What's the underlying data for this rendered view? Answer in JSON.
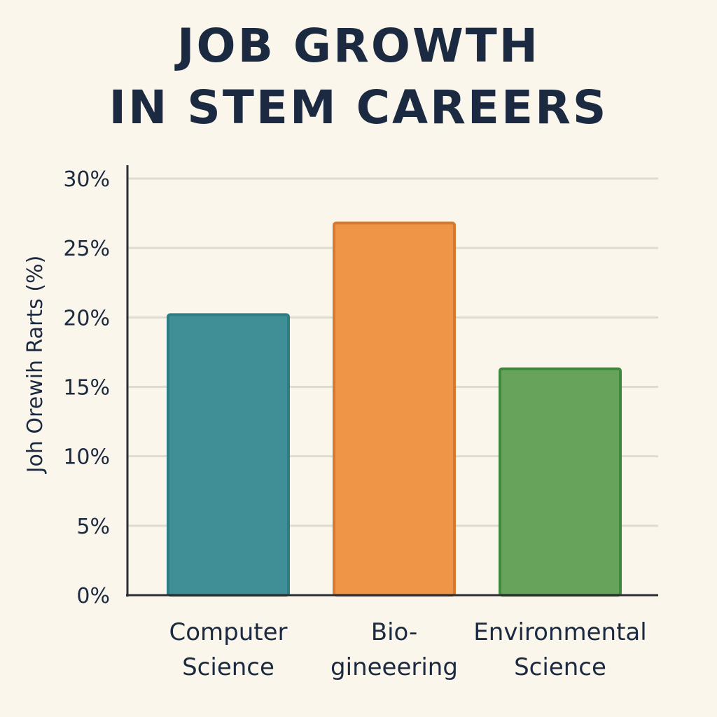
{
  "chart_data": {
    "type": "bar",
    "title_lines": [
      "JOB GROWTH",
      "IN STEM CAREERS"
    ],
    "ylabel": "Joh Orewih Rarts (%)",
    "xlabel": "",
    "ylim": [
      0,
      30
    ],
    "yticks": [
      {
        "value": 0,
        "label": "0%"
      },
      {
        "value": 5,
        "label": "5%"
      },
      {
        "value": 10,
        "label": "10%"
      },
      {
        "value": 15,
        "label": "15%"
      },
      {
        "value": 20,
        "label": "20%"
      },
      {
        "value": 25,
        "label": "25%"
      },
      {
        "value": 30,
        "label": "30%"
      }
    ],
    "categories": [
      {
        "lines": [
          "Computer",
          "Science"
        ],
        "value": 20.2,
        "color": "#3e8f96",
        "stroke": "#2e7c84"
      },
      {
        "lines": [
          "Bio-",
          "gineeering"
        ],
        "value": 26.8,
        "color": "#ef9548",
        "stroke": "#d67a30"
      },
      {
        "lines": [
          "Environmental",
          "Science"
        ],
        "value": 16.3,
        "color": "#67a35a",
        "stroke": "#3f8a3a"
      }
    ],
    "grid": true,
    "legend": "none"
  }
}
